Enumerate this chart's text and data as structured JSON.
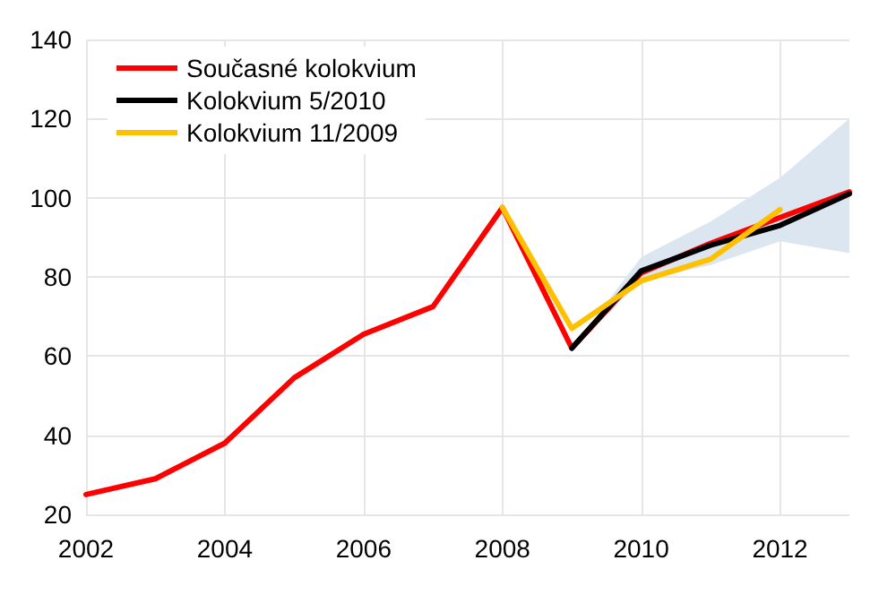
{
  "chart_data": {
    "type": "line",
    "xlim": [
      2002,
      2013
    ],
    "xticks": [
      2002,
      2004,
      2006,
      2008,
      2010,
      2012
    ],
    "ylim": [
      20,
      140
    ],
    "yticks": [
      20,
      40,
      60,
      80,
      100,
      120,
      140
    ],
    "grid": true,
    "legend": "top left",
    "marker": "none",
    "line_style": "solid",
    "series": [
      {
        "name": "Současné kolokvium",
        "color": "#ff0000",
        "x": [
          2002,
          2003,
          2004,
          2005,
          2006,
          2007,
          2008,
          2009,
          2010,
          2011,
          2012,
          2013
        ],
        "values": [
          25,
          29,
          38,
          54.5,
          65.5,
          72.5,
          97.5,
          62,
          81,
          88.5,
          95,
          101.5
        ]
      },
      {
        "name": "Kolokvium 5/2010",
        "color": "#000000",
        "x": [
          2009,
          2010,
          2011,
          2012,
          2013
        ],
        "values": [
          62,
          81.5,
          88,
          93,
          101
        ],
        "lower": [
          62,
          79,
          83,
          89,
          86
        ],
        "upper": [
          62,
          85,
          94,
          105,
          120
        ]
      },
      {
        "name": "Kolokvium 11/2009",
        "color": "#ffc000",
        "x": [
          2008,
          2009,
          2010,
          2011,
          2012
        ],
        "values": [
          97.5,
          67,
          79,
          84.5,
          97
        ]
      }
    ]
  }
}
